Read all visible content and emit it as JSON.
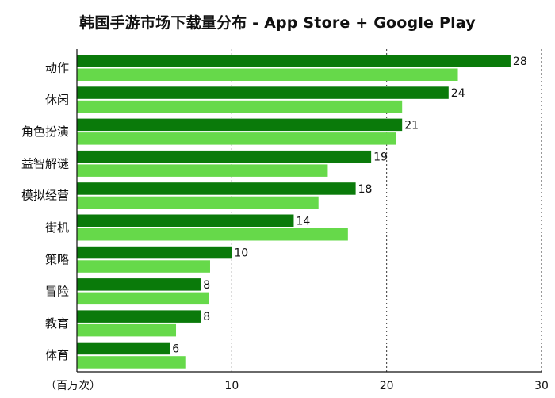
{
  "chart_data": {
    "type": "bar",
    "orientation": "horizontal",
    "title": "韩国手游市场下载量分布 - App Store + Google Play",
    "unit_label": "（百万次）",
    "categories": [
      "动作",
      "休闲",
      "角色扮演",
      "益智解谜",
      "模拟经营",
      "街机",
      "策略",
      "冒险",
      "教育",
      "体育"
    ],
    "series": [
      {
        "values": [
          28,
          24,
          21,
          19,
          18,
          14,
          10,
          8,
          8,
          6
        ],
        "color": "#0a7a0a",
        "show_labels": true
      },
      {
        "values": [
          24.6,
          21.0,
          20.6,
          16.2,
          15.6,
          17.5,
          8.6,
          8.5,
          6.4,
          7.0
        ],
        "color": "#66d94a",
        "show_labels": false
      }
    ],
    "xlim": [
      0,
      30
    ],
    "xticks": [
      10,
      20,
      30
    ],
    "grid": "vertical-dotted"
  }
}
